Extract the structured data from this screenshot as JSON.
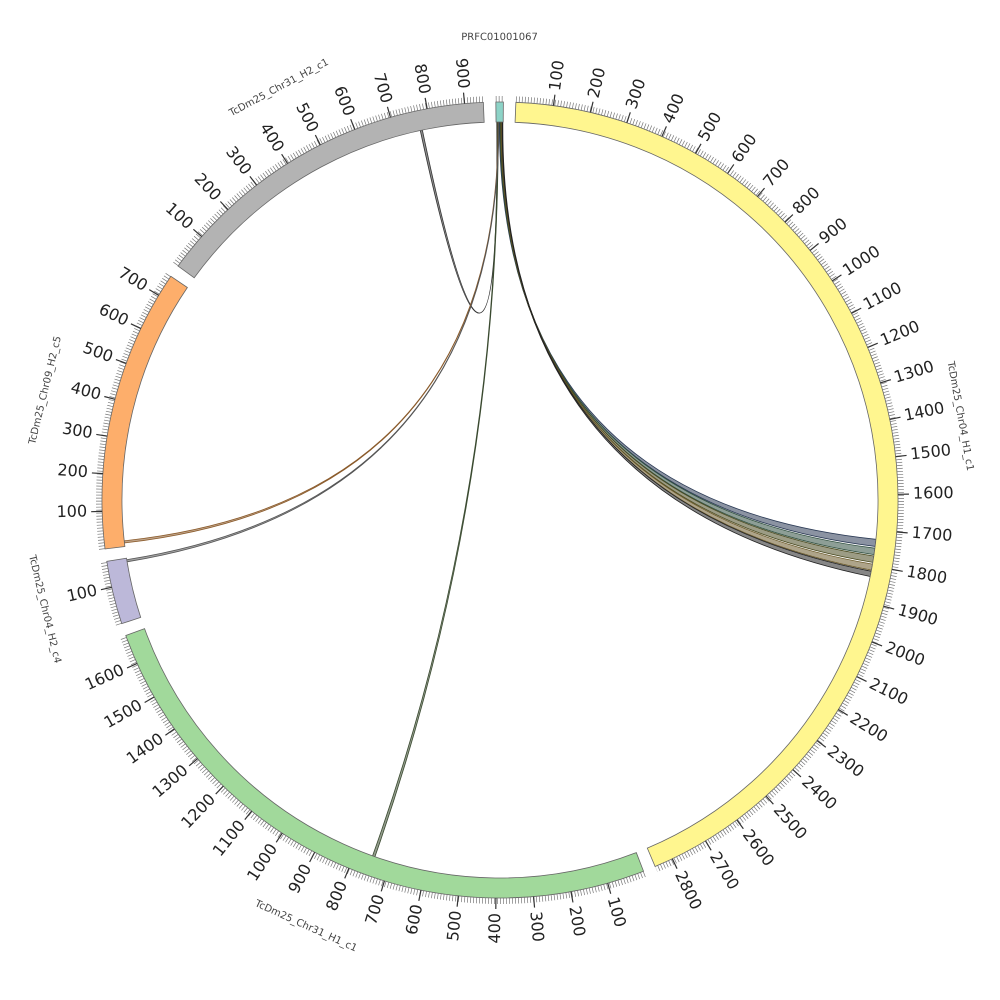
{
  "segments": [
    {
      "name": "PRFC01001067",
      "length": 20,
      "color": "#8dd3c7",
      "ticks": []
    },
    {
      "name": "TcDm25_Chr04_H1_c1",
      "length": 2850,
      "color": "#fff68f",
      "ticks": [
        100,
        200,
        300,
        400,
        500,
        600,
        700,
        800,
        900,
        1000,
        1100,
        1200,
        1300,
        1400,
        1500,
        1600,
        1700,
        1800,
        1900,
        2000,
        2100,
        2200,
        2300,
        2400,
        2500,
        2600,
        2700,
        2800
      ]
    },
    {
      "name": "TcDm25_Chr31_H1_c1",
      "length": 1680,
      "color": "#a1d99b",
      "ticks": [
        100,
        200,
        300,
        400,
        500,
        600,
        700,
        800,
        900,
        1000,
        1100,
        1200,
        1300,
        1400,
        1500,
        1600
      ]
    },
    {
      "name": "TcDm25_Chr04_H2_c4",
      "length": 170,
      "color": "#bcb8d9",
      "ticks": [
        100
      ]
    },
    {
      "name": "TcDm25_Chr09_H2_c5",
      "length": 760,
      "color": "#fdae6b",
      "ticks": [
        100,
        200,
        300,
        400,
        500,
        600,
        700
      ]
    },
    {
      "name": "TcDm25_Chr31_H2_c1",
      "length": 950,
      "color": "#b3b3b3",
      "ticks": [
        100,
        200,
        300,
        400,
        500,
        600,
        700,
        800,
        900
      ]
    }
  ],
  "links": [
    {
      "source": "PRFC01001067",
      "source_pos": [
        2,
        4
      ],
      "target": "TcDm25_Chr31_H2_c1",
      "target_pos": [
        770,
        776
      ],
      "color": "#333333"
    },
    {
      "source": "PRFC01001067",
      "source_pos": [
        4,
        6
      ],
      "target": "TcDm25_Chr31_H1_c1",
      "target_pos": [
        745,
        752
      ],
      "color": "#3a4a30"
    },
    {
      "source": "PRFC01001067",
      "source_pos": [
        6,
        7
      ],
      "target": "TcDm25_Chr09_H2_c5",
      "target_pos": [
        10,
        16
      ],
      "color": "#8a5a2a"
    },
    {
      "source": "PRFC01001067",
      "source_pos": [
        7,
        8
      ],
      "target": "TcDm25_Chr04_H2_c4",
      "target_pos": [
        160,
        166
      ],
      "color": "#555555"
    },
    {
      "source": "PRFC01001067",
      "source_pos": [
        9,
        11
      ],
      "target": "TcDm25_Chr04_H1_c1",
      "target_pos": [
        1725,
        1745
      ],
      "color": "#2b3a55"
    },
    {
      "source": "PRFC01001067",
      "source_pos": [
        11,
        13
      ],
      "target": "TcDm25_Chr04_H1_c1",
      "target_pos": [
        1750,
        1768
      ],
      "color": "#2f4f3f"
    },
    {
      "source": "PRFC01001067",
      "source_pos": [
        13,
        15
      ],
      "target": "TcDm25_Chr04_H1_c1",
      "target_pos": [
        1772,
        1790
      ],
      "color": "#4a4a20"
    },
    {
      "source": "PRFC01001067",
      "source_pos": [
        15,
        17
      ],
      "target": "TcDm25_Chr04_H1_c1",
      "target_pos": [
        1795,
        1812
      ],
      "color": "#6b5a2a"
    },
    {
      "source": "PRFC01001067",
      "source_pos": [
        17,
        19
      ],
      "target": "TcDm25_Chr04_H1_c1",
      "target_pos": [
        1815,
        1830
      ],
      "color": "#222222"
    }
  ]
}
